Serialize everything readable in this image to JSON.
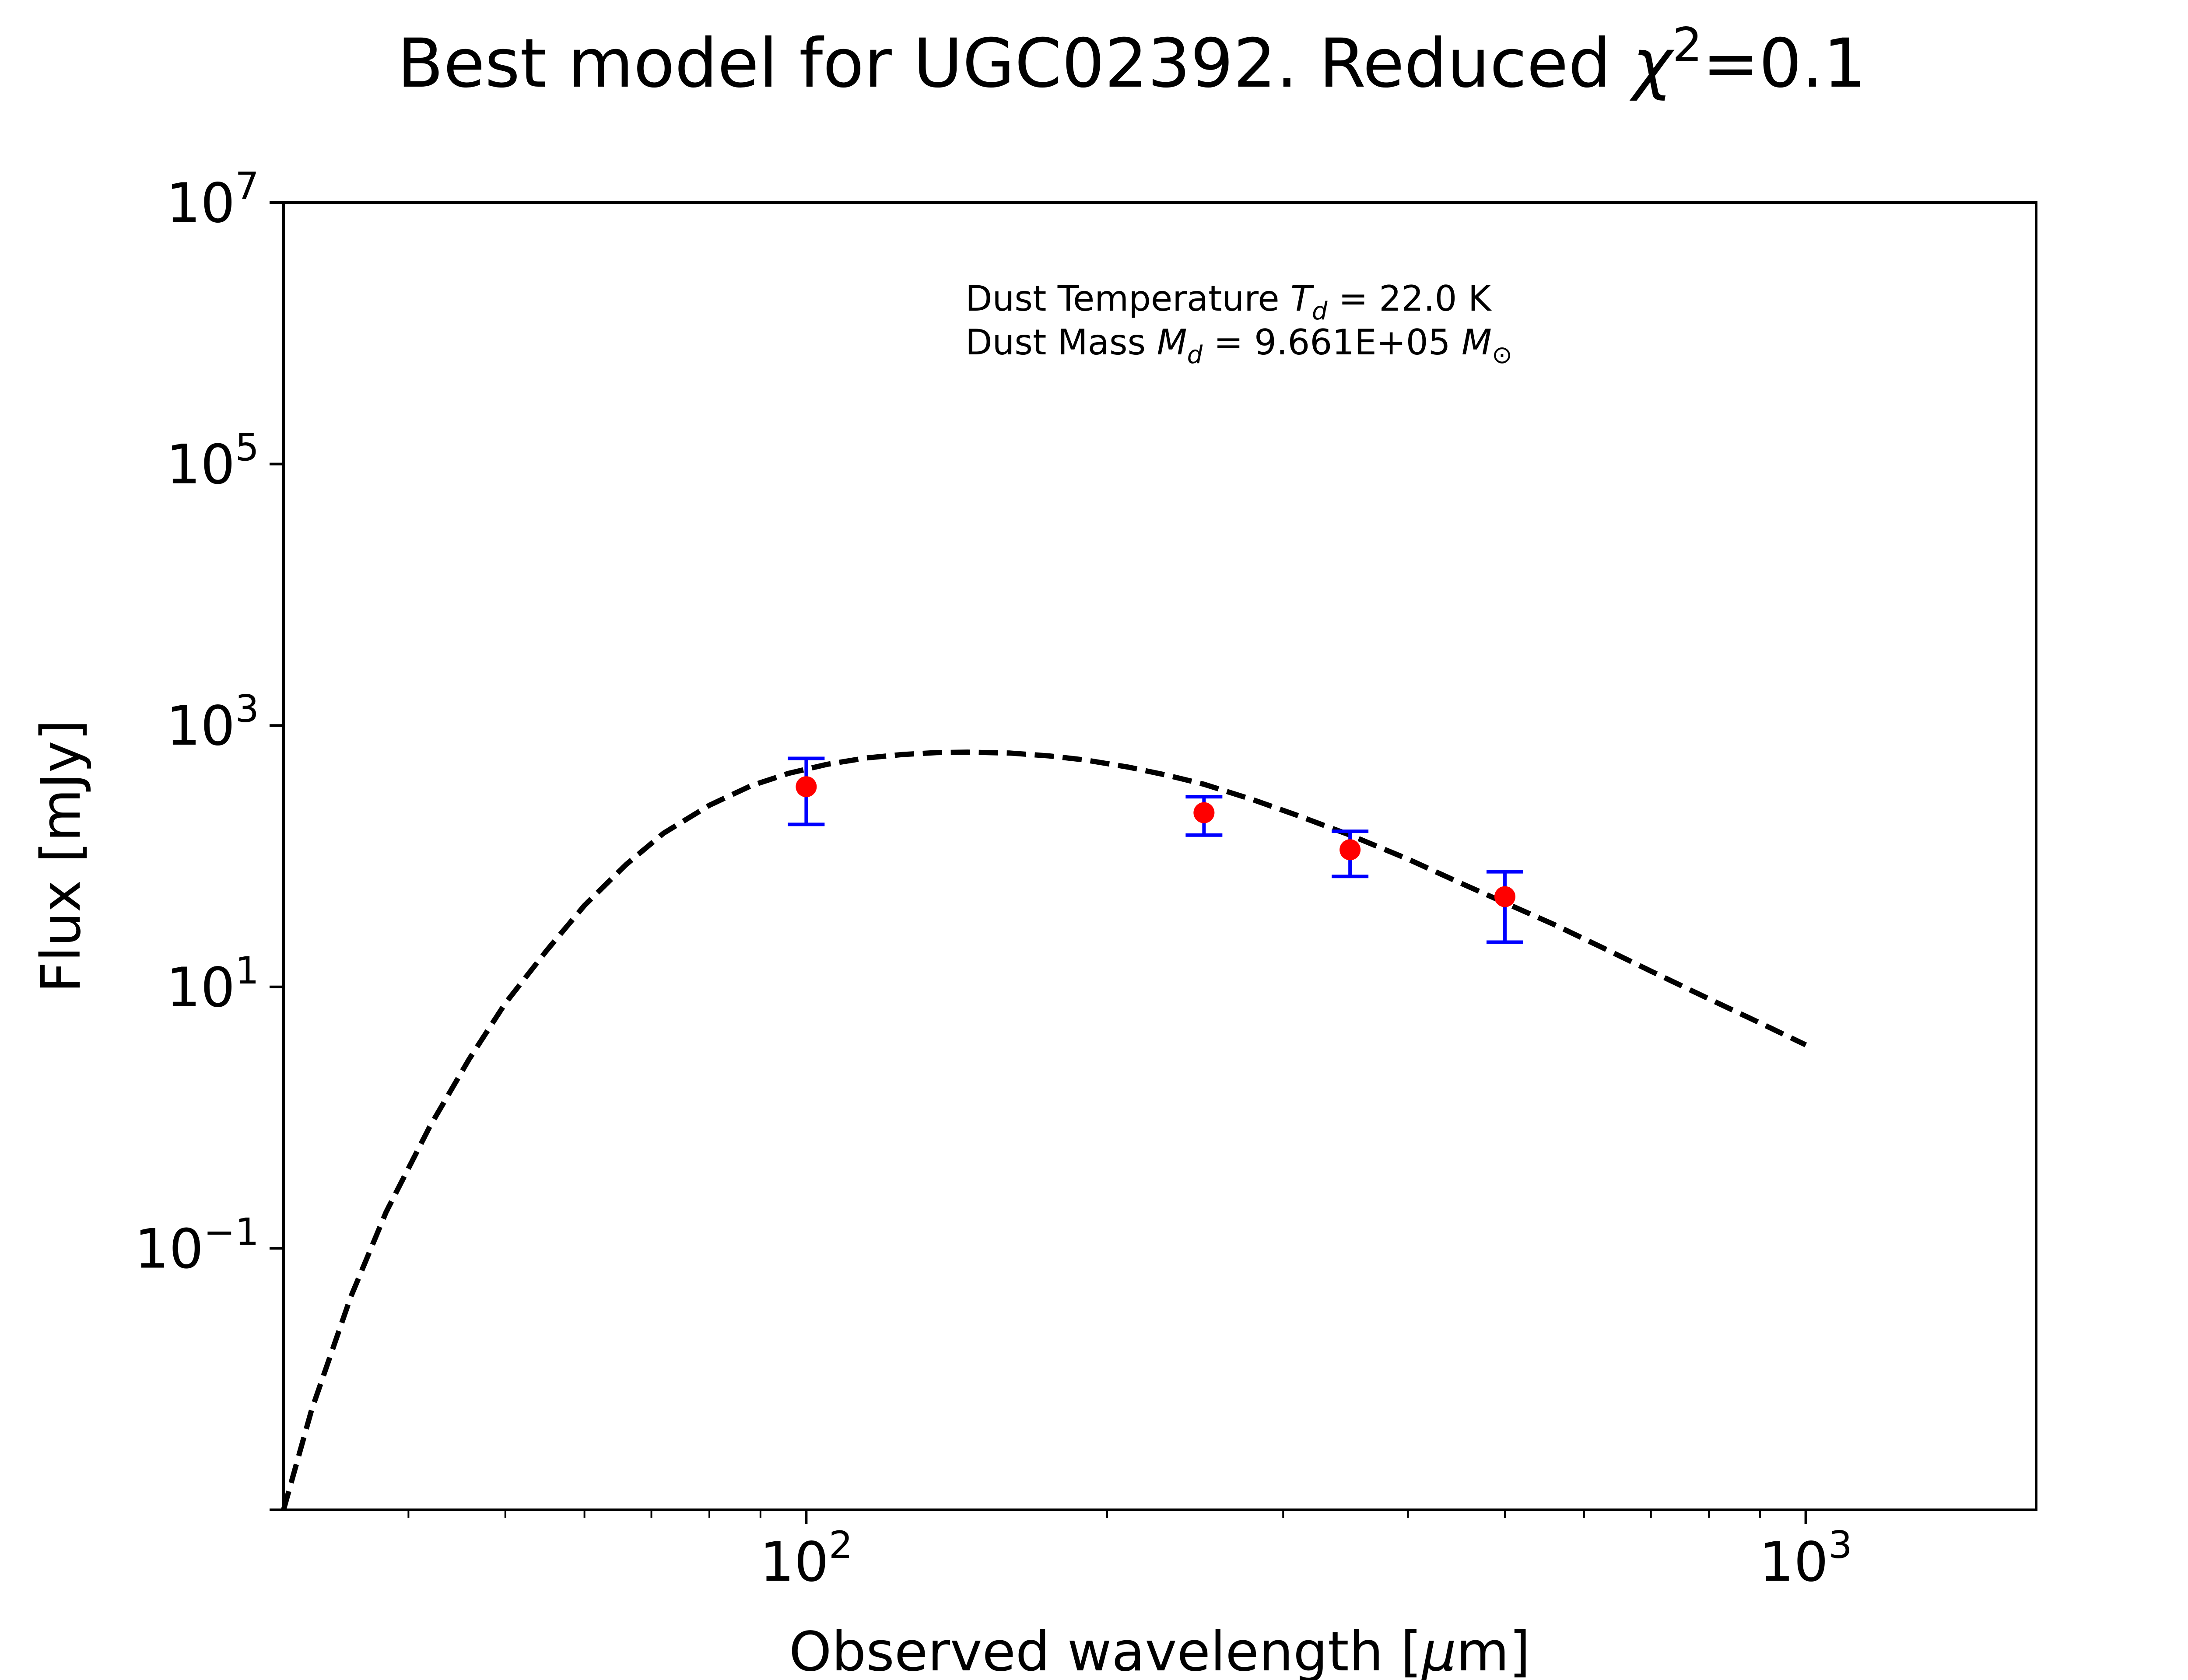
{
  "chart_data": {
    "type": "scatter",
    "title": "Best model for UGC02392. Reduced χ²=0.1",
    "title_parts": {
      "prefix": "Best model for UGC02392. Reduced ",
      "chi": "χ",
      "sup": "2",
      "suffix": "=0.1"
    },
    "xlabel": "Observed wavelength [μm]",
    "xlabel_parts": {
      "prefix": "Observed wavelength [",
      "mu": "μ",
      "suffix": "m]"
    },
    "ylabel": "Flux [mJy]",
    "x_scale": "log",
    "y_scale": "log",
    "xlim": [
      30,
      1700
    ],
    "ylim": [
      0.001,
      10000000
    ],
    "grid": false,
    "x_ticks": [
      {
        "value": 100,
        "base": "10",
        "exp": "2"
      },
      {
        "value": 1000,
        "base": "10",
        "exp": "3"
      }
    ],
    "y_ticks": [
      {
        "value": 0.1,
        "base": "10",
        "exp": "−1"
      },
      {
        "value": 10,
        "base": "10",
        "exp": "1"
      },
      {
        "value": 1000,
        "base": "10",
        "exp": "3"
      },
      {
        "value": 100000,
        "base": "10",
        "exp": "5"
      },
      {
        "value": 10000000,
        "base": "10",
        "exp": "7"
      }
    ],
    "annotation": {
      "line1": {
        "prefix": "Dust Temperature ",
        "var": "T",
        "sub": "d",
        "suffix": " = 22.0 K"
      },
      "line2": {
        "prefix": "Dust Mass ",
        "var": "M",
        "sub": "d",
        "suffix": " = 9.661E+05 ",
        "unit": "M",
        "unit_sub": "⊙"
      }
    },
    "series": [
      {
        "kind": "model",
        "style": "dashed",
        "color": "#000000",
        "x": [
          30,
          32,
          35,
          38,
          42,
          46,
          50,
          55,
          60,
          66,
          72,
          80,
          88,
          96,
          105,
          115,
          125,
          135,
          145,
          160,
          175,
          190,
          210,
          230,
          250,
          280,
          310,
          350,
          400,
          450,
          500,
          560,
          630,
          700,
          800,
          900,
          1000
        ],
        "y": [
          0.001,
          0.0058,
          0.042,
          0.19,
          0.85,
          2.8,
          7.5,
          19,
          42,
          86,
          150,
          245,
          345,
          430,
          505,
          565,
          600,
          620,
          625,
          615,
          585,
          545,
          480,
          415,
          355,
          270,
          205,
          145,
          95,
          63,
          44,
          30,
          19.5,
          13.2,
          8.1,
          5.3,
          3.6
        ]
      },
      {
        "kind": "observed",
        "marker_color": "#ff0000",
        "errorbar_color": "#0000ff",
        "points": [
          {
            "x": 100,
            "y": 340,
            "ylow": 175,
            "yhigh": 560
          },
          {
            "x": 250,
            "y": 215,
            "ylow": 145,
            "yhigh": 285
          },
          {
            "x": 350,
            "y": 112,
            "ylow": 70,
            "yhigh": 155
          },
          {
            "x": 500,
            "y": 49,
            "ylow": 22,
            "yhigh": 76
          }
        ]
      }
    ]
  }
}
